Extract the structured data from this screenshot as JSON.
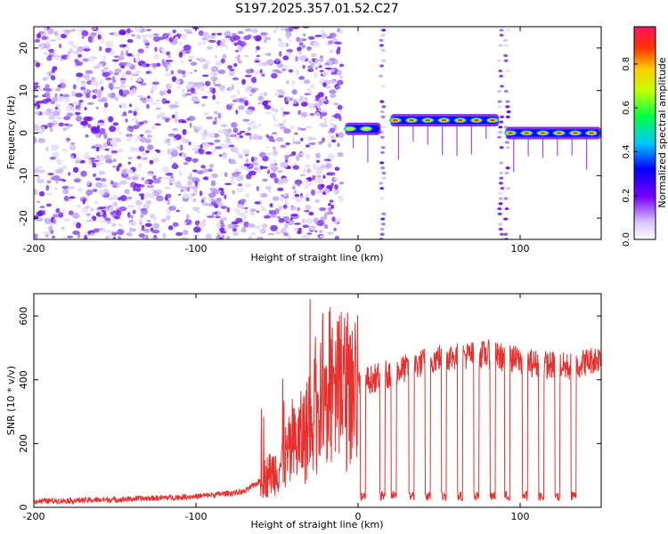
{
  "title": "S197.2025.357.01.52.C27",
  "chart_data": [
    {
      "type": "heatmap",
      "xlabel": "Height of straight line (km)",
      "ylabel": "Frequency (Hz)",
      "xlim": [
        -200,
        150
      ],
      "ylim": [
        -25,
        25
      ],
      "x_ticks": [
        "-200",
        "-100",
        "0",
        "100"
      ],
      "y_ticks": [
        "-20",
        "-10",
        "0",
        "10",
        "20"
      ],
      "colorbar": {
        "label": "Normalized spectral amplitude",
        "range": [
          0,
          0.97
        ],
        "ticks": [
          "0.0",
          "0.2",
          "0.4",
          "0.6",
          "0.8"
        ]
      },
      "signal_segments": [
        {
          "x_start": -8,
          "x_end": 14,
          "freq": 1
        },
        {
          "x_start": 20,
          "x_end": 87,
          "freq": 3
        },
        {
          "x_start": 91,
          "x_end": 150,
          "freq": 0
        }
      ],
      "gaps": [
        15,
        88,
        92
      ]
    },
    {
      "type": "line",
      "xlabel": "Height of straight line (km)",
      "ylabel": "SNR (10 * v/v)",
      "xlim": [
        -200,
        150
      ],
      "ylim": [
        0,
        670
      ],
      "x_ticks": [
        "-200",
        "-100",
        "0",
        "100"
      ],
      "y_ticks": [
        "0",
        "200",
        "400",
        "600"
      ],
      "color": "#e8312e",
      "profile": [
        {
          "x": -200,
          "y": 20
        },
        {
          "x": -150,
          "y": 25
        },
        {
          "x": -100,
          "y": 35
        },
        {
          "x": -70,
          "y": 50
        },
        {
          "x": -50,
          "y": 120
        },
        {
          "x": -30,
          "y": 250
        },
        {
          "x": -20,
          "y": 330
        },
        {
          "x": -10,
          "y": 360
        },
        {
          "x": 0,
          "y": 390
        },
        {
          "x": 20,
          "y": 420
        },
        {
          "x": 50,
          "y": 470
        },
        {
          "x": 80,
          "y": 480
        },
        {
          "x": 110,
          "y": 450
        },
        {
          "x": 130,
          "y": 440
        },
        {
          "x": 150,
          "y": 470
        }
      ],
      "drops": [
        3,
        15,
        22,
        33,
        43,
        53,
        63,
        73,
        83,
        92,
        103,
        113,
        123,
        133
      ]
    }
  ]
}
